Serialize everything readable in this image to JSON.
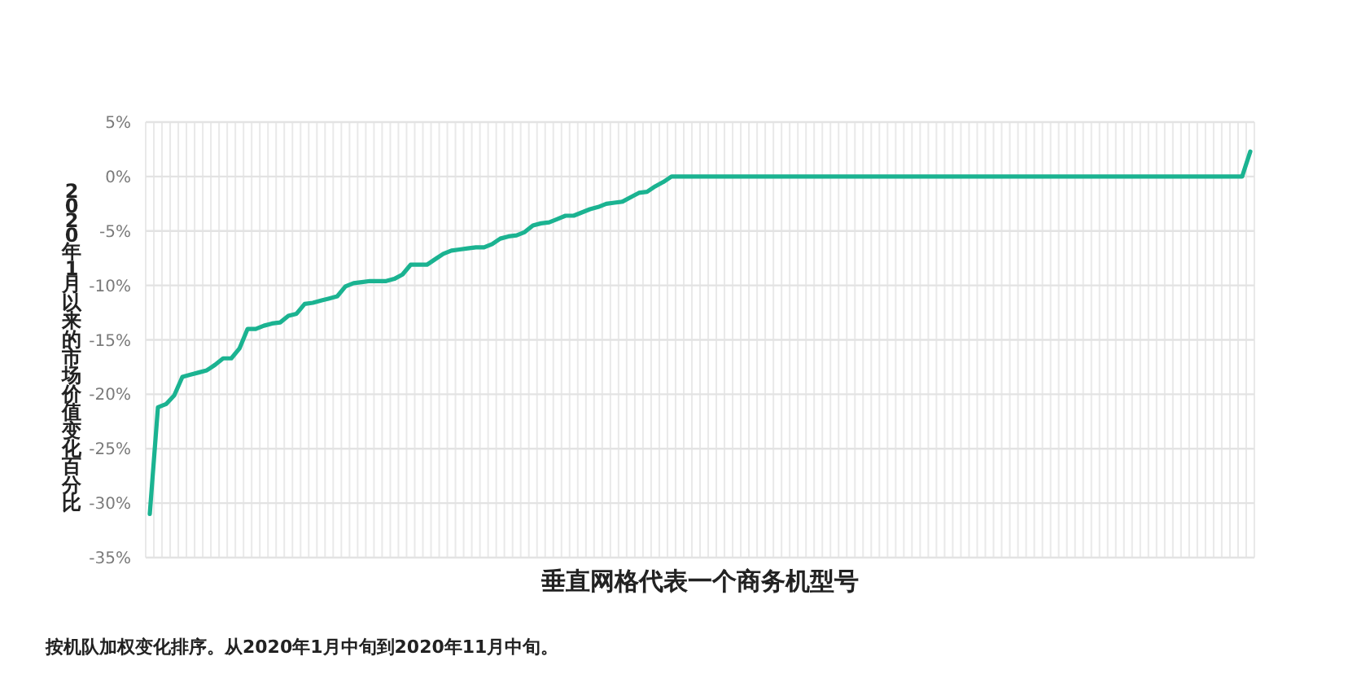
{
  "chart_data": {
    "type": "line",
    "ylabel": "2020年1月以来的市场价值变化百分比",
    "xlabel": "垂直网格代表一个商务机型号",
    "annotations": [
      "按机队加权变化排序。从2020年1月中旬到2020年11月中旬。"
    ],
    "categories": [
      null,
      null,
      null,
      null,
      null,
      null,
      null,
      null,
      null,
      null,
      null,
      null,
      null,
      null,
      null,
      null,
      null,
      null,
      null,
      null,
      null,
      null,
      null,
      null,
      null,
      null,
      null,
      null,
      null,
      null,
      null,
      null,
      null,
      null,
      null,
      null,
      null,
      null,
      null,
      null,
      null,
      null,
      null,
      null,
      null,
      null,
      null,
      null,
      null,
      null,
      null,
      null,
      null,
      null,
      null,
      null,
      null,
      null,
      null,
      null,
      null,
      null,
      null,
      null,
      null,
      null,
      null,
      null,
      null,
      null,
      null,
      null,
      null,
      null,
      null,
      null,
      null,
      null,
      null,
      null,
      null,
      null,
      null,
      null,
      null,
      null,
      null,
      null,
      null,
      null,
      null,
      null,
      null,
      null,
      null,
      null,
      null,
      null,
      null,
      null,
      null,
      null,
      null,
      null,
      null,
      null,
      null,
      null,
      null,
      null,
      null,
      null,
      null,
      null,
      null,
      null,
      null,
      null,
      null,
      null,
      null,
      null,
      null,
      null,
      null,
      null,
      null,
      null,
      null,
      null,
      null,
      null,
      null,
      null,
      null,
      null
    ],
    "values": [
      -31,
      -21.2,
      -20.9,
      -20.1,
      -18.4,
      -18.2,
      -18.0,
      -17.8,
      -17.3,
      -16.7,
      -16.7,
      -15.8,
      -14.0,
      -14.0,
      -13.7,
      -13.5,
      -13.4,
      -12.8,
      -12.6,
      -11.7,
      -11.6,
      -11.4,
      -11.2,
      -11.0,
      -10.1,
      -9.8,
      -9.7,
      -9.6,
      -9.6,
      -9.6,
      -9.4,
      -9.0,
      -8.1,
      -8.1,
      -8.1,
      -7.6,
      -7.1,
      -6.8,
      -6.7,
      -6.6,
      -6.5,
      -6.5,
      -6.2,
      -5.7,
      -5.5,
      -5.4,
      -5.1,
      -4.5,
      -4.3,
      -4.2,
      -3.9,
      -3.6,
      -3.6,
      -3.3,
      -3.0,
      -2.8,
      -2.5,
      -2.4,
      -2.3,
      -1.9,
      -1.5,
      -1.4,
      -0.9,
      -0.5,
      0,
      0,
      0,
      0,
      0,
      0,
      0,
      0,
      0,
      0,
      0,
      0,
      0,
      0,
      0,
      0,
      0,
      0,
      0,
      0,
      0,
      0,
      0,
      0,
      0,
      0,
      0,
      0,
      0,
      0,
      0,
      0,
      0,
      0,
      0,
      0,
      0,
      0,
      0,
      0,
      0,
      0,
      0,
      0,
      0,
      0,
      0,
      0,
      0,
      0,
      0,
      0,
      0,
      0,
      0,
      0,
      0,
      0,
      0,
      0,
      0,
      0,
      0,
      0,
      0,
      0,
      0,
      0,
      0,
      0,
      0,
      2.3
    ],
    "color": "#1bb391",
    "ylim": [
      -35,
      5
    ],
    "yticks": [
      {
        "value": 5,
        "label": "5%"
      },
      {
        "value": 0,
        "label": "0%"
      },
      {
        "value": -5,
        "label": "-5%"
      },
      {
        "value": -10,
        "label": "-10%"
      },
      {
        "value": -15,
        "label": "-15%"
      },
      {
        "value": -20,
        "label": "-20%"
      },
      {
        "value": -25,
        "label": "-25%"
      },
      {
        "value": -30,
        "label": "-30%"
      },
      {
        "value": -35,
        "label": "-35%"
      }
    ],
    "grid": true
  }
}
